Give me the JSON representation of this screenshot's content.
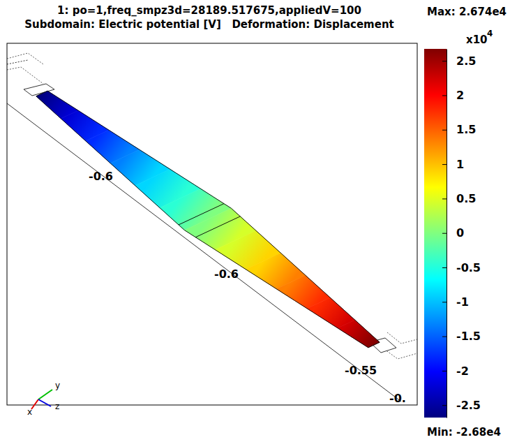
{
  "chart_data": {
    "type": "surface",
    "title": "1: po=1,freq_smpz3d=28189.517675,appliedV=100",
    "subtitle": "Subdomain: Electric potential [V]   Deformation: Displacement",
    "values": [
      -2.68,
      -2.23,
      -1.79,
      -1.34,
      -0.89,
      -0.45,
      0,
      0.45,
      0.89,
      1.34,
      1.78,
      2.23,
      2.674
    ],
    "colorbar": {
      "lim": [
        -2.68,
        2.674
      ],
      "ticks": [
        -2.5,
        -2,
        -1.5,
        -1,
        -0.5,
        0,
        0.5,
        1,
        1.5,
        2,
        2.5
      ],
      "multiplier": "x10",
      "exponent": "4",
      "max_label": "Max: 2.674e4",
      "min_label": "Min: -2.68e4"
    },
    "axis_labels": [
      "-0.6",
      "-0.6",
      "-0.55",
      "-0."
    ],
    "triad": [
      "x",
      "y",
      "z"
    ]
  }
}
